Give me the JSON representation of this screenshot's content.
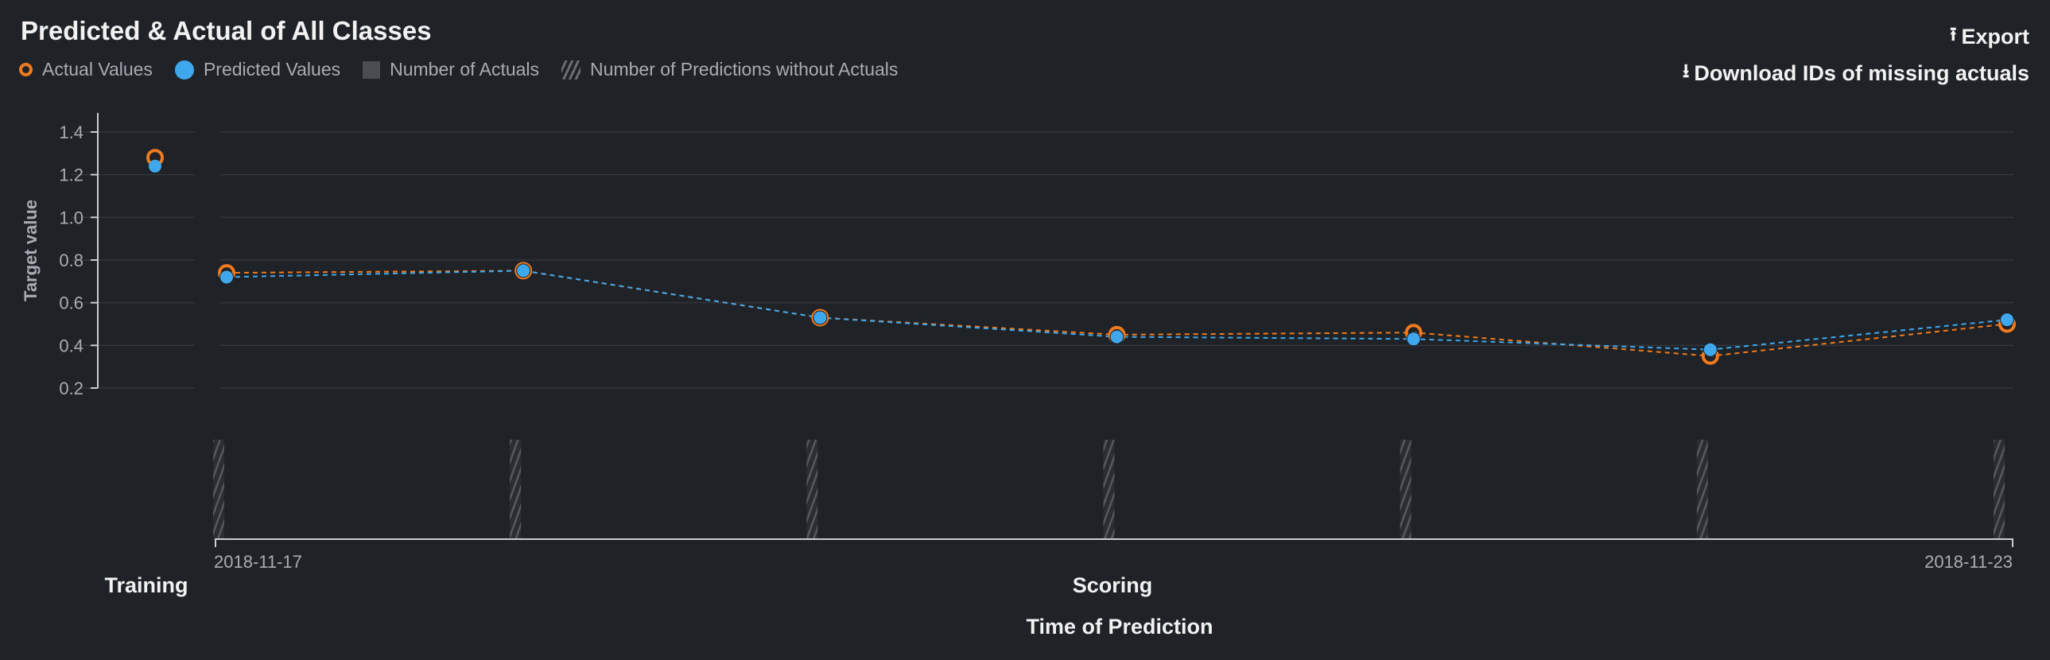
{
  "header": {
    "title": "Predicted & Actual of All Classes",
    "export_label": "Export",
    "download_label": "Download IDs of missing actuals"
  },
  "legend": {
    "actual": "Actual Values",
    "predicted": "Predicted Values",
    "num_actuals": "Number of Actuals",
    "num_pred_no_actuals": "Number of Predictions without Actuals"
  },
  "icons": {
    "export": "upload-icon",
    "download": "download-icon"
  },
  "colors": {
    "actual": "#f07a1e",
    "predicted": "#3fa7ec",
    "background": "#1f2227",
    "grid": "#33373d",
    "axis": "#a9adb3",
    "hatch": "#55585d"
  },
  "chart_data": {
    "type": "line",
    "title": "Predicted & Actual of All Classes",
    "ylabel": "Target value",
    "xlabel": "Time of Prediction",
    "ylim": [
      0.2,
      1.4
    ],
    "yticks": [
      0.2,
      0.4,
      0.6,
      0.8,
      1.0,
      1.2,
      1.4
    ],
    "grid": true,
    "legend_position": "top-left",
    "training": {
      "label": "Training",
      "actual": 1.28,
      "predicted": 1.24
    },
    "scoring": {
      "label": "Scoring",
      "x_start_label": "2018-11-17",
      "x_end_label": "2018-11-23",
      "series": [
        {
          "name": "Actual Values",
          "values": [
            0.74,
            0.75,
            0.53,
            0.45,
            0.46,
            0.35,
            0.5
          ]
        },
        {
          "name": "Predicted Values",
          "values": [
            0.72,
            0.75,
            0.53,
            0.44,
            0.43,
            0.38,
            0.52
          ]
        }
      ],
      "predictions_without_actuals": [
        1,
        1,
        1,
        1,
        1,
        1,
        1
      ]
    }
  }
}
